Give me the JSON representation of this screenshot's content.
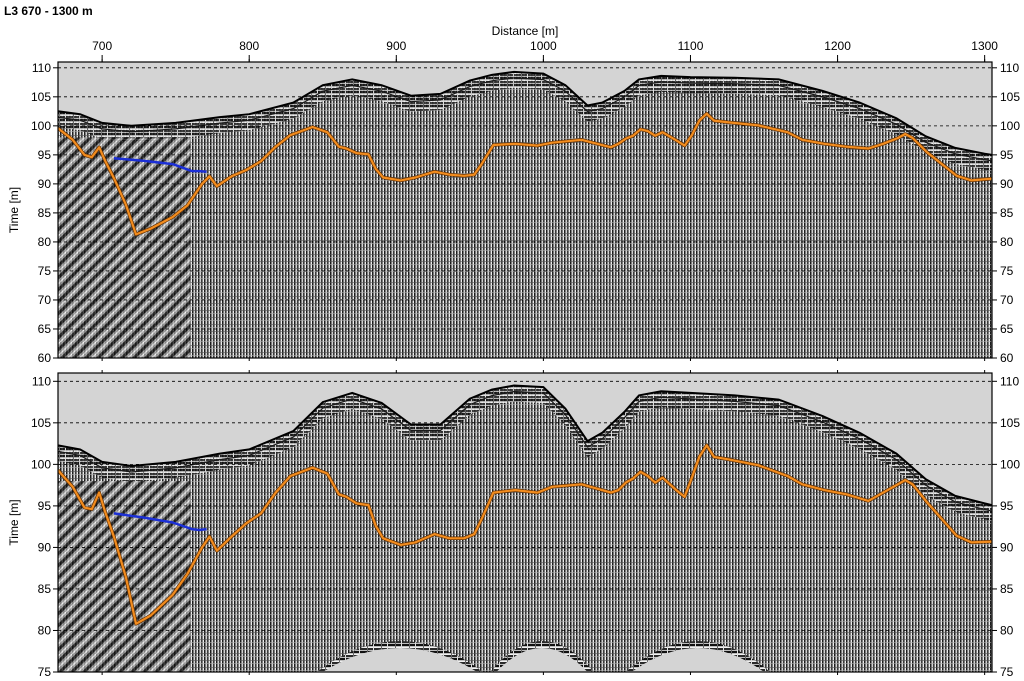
{
  "figure": {
    "title": "L3 670 - 1300 m",
    "xlabel": "Distance [m]",
    "x_ticks": [
      700,
      800,
      900,
      1000,
      1100,
      1200,
      1300
    ],
    "colors": {
      "background": "#d4d4d4",
      "horizon_orange": "#f28c1e",
      "horizon_blue": "#1b2fd6",
      "grid": "#000000"
    }
  },
  "chart_data": [
    {
      "type": "line",
      "panel": "top",
      "xlabel": "Distance [m]",
      "ylabel": "Time [m]",
      "xlim": [
        670,
        1305
      ],
      "ylim": [
        60,
        111
      ],
      "y_ticks": [
        60,
        65,
        70,
        75,
        80,
        85,
        90,
        95,
        100,
        105,
        110
      ],
      "grid": "dashed horizontal",
      "series": [
        {
          "role": "surface",
          "x": [
            670,
            685,
            700,
            720,
            750,
            780,
            800,
            830,
            850,
            870,
            890,
            910,
            930,
            950,
            965,
            980,
            1000,
            1015,
            1030,
            1040,
            1055,
            1065,
            1080,
            1100,
            1130,
            1160,
            1190,
            1215,
            1240,
            1260,
            1280,
            1300,
            1305
          ],
          "y": [
            102.5,
            102,
            100.5,
            100,
            100.5,
            101.5,
            102,
            104,
            107,
            108,
            107,
            105.2,
            105.5,
            107.8,
            108.8,
            109.3,
            109,
            107,
            103.5,
            104,
            106,
            108,
            108.6,
            108.4,
            108.3,
            108,
            106,
            104,
            101.3,
            98.2,
            96.2,
            95.2,
            95
          ]
        },
        {
          "role": "orange-horizon",
          "x": [
            670,
            680,
            688,
            693,
            698,
            702,
            708,
            716,
            723,
            733,
            748,
            758,
            768,
            773,
            778,
            788,
            798,
            808,
            818,
            828,
            843,
            853,
            861,
            866,
            873,
            881,
            886,
            891,
            903,
            913,
            926,
            936,
            946,
            953,
            958,
            966,
            981,
            996,
            1006,
            1026,
            1046,
            1051,
            1056,
            1061,
            1066,
            1071,
            1076,
            1081,
            1091,
            1096,
            1101,
            1106,
            1111,
            1116,
            1126,
            1146,
            1166,
            1176,
            1191,
            1206,
            1221,
            1231,
            1241,
            1246,
            1251,
            1261,
            1271,
            1281,
            1291,
            1305
          ],
          "y": [
            99.6,
            97.6,
            95,
            94.6,
            96.3,
            94,
            91,
            86.5,
            81.3,
            82.3,
            84.3,
            86.3,
            90,
            91.3,
            89.6,
            91.3,
            92.4,
            93.9,
            96.4,
            98.4,
            99.8,
            98.9,
            96.4,
            96.1,
            95.3,
            95.1,
            92.6,
            91.1,
            90.6,
            91.1,
            92.1,
            91.6,
            91.4,
            91.6,
            93.4,
            96.7,
            96.9,
            96.6,
            97.1,
            97.6,
            96.3,
            96.9,
            97.8,
            98.3,
            99.4,
            99.1,
            98.3,
            98.9,
            97.4,
            96.6,
            98.4,
            100.9,
            102.1,
            100.9,
            100.6,
            100.1,
            98.9,
            97.6,
            96.9,
            96.4,
            96.1,
            96.9,
            97.9,
            98.6,
            97.9,
            95.4,
            93.4,
            91.4,
            90.6,
            90.9
          ]
        },
        {
          "role": "blue-horizon",
          "x": [
            708,
            728,
            748,
            761,
            766,
            771
          ],
          "y": [
            94.4,
            94,
            93.4,
            92.2,
            92.2,
            92.1
          ]
        }
      ]
    },
    {
      "type": "line",
      "panel": "bottom",
      "xlabel": "Distance [m]",
      "ylabel": "Time [m]",
      "xlim": [
        670,
        1305
      ],
      "ylim": [
        75,
        111
      ],
      "y_ticks": [
        75,
        80,
        85,
        90,
        95,
        100,
        105,
        110
      ],
      "grid": "dashed horizontal",
      "series": [
        {
          "role": "surface",
          "x": [
            670,
            685,
            700,
            720,
            750,
            780,
            800,
            830,
            850,
            870,
            890,
            910,
            930,
            950,
            965,
            980,
            1000,
            1015,
            1030,
            1040,
            1055,
            1065,
            1080,
            1100,
            1130,
            1160,
            1190,
            1215,
            1240,
            1260,
            1280,
            1300,
            1305
          ],
          "y": [
            102.3,
            101.8,
            100.3,
            99.8,
            100.3,
            101.3,
            101.8,
            104,
            107.5,
            108.6,
            107.4,
            104.8,
            104.8,
            107.9,
            109,
            109.5,
            109.3,
            106.7,
            102.8,
            103.8,
            106.3,
            108.3,
            108.8,
            108.6,
            108.3,
            107.8,
            105.8,
            103.8,
            101.3,
            98.2,
            96.2,
            95.3,
            95.1
          ]
        },
        {
          "role": "orange-horizon",
          "x": [
            670,
            680,
            688,
            693,
            698,
            702,
            708,
            716,
            723,
            733,
            748,
            758,
            768,
            773,
            778,
            788,
            798,
            808,
            818,
            828,
            843,
            853,
            861,
            866,
            873,
            881,
            886,
            891,
            903,
            913,
            926,
            936,
            946,
            953,
            958,
            966,
            981,
            996,
            1006,
            1026,
            1046,
            1051,
            1056,
            1061,
            1066,
            1071,
            1076,
            1081,
            1091,
            1096,
            1101,
            1106,
            1111,
            1116,
            1126,
            1146,
            1166,
            1176,
            1191,
            1206,
            1221,
            1231,
            1241,
            1246,
            1251,
            1261,
            1271,
            1281,
            1291,
            1305
          ],
          "y": [
            99.3,
            97.3,
            94.8,
            94.6,
            96.6,
            94.3,
            91.3,
            86.5,
            80.8,
            81.8,
            84.3,
            86.8,
            90,
            91.3,
            89.6,
            91.3,
            92.9,
            94.1,
            96.6,
            98.6,
            99.6,
            98.9,
            96.4,
            96.1,
            95.3,
            95.1,
            92.6,
            91.1,
            90.3,
            90.6,
            91.6,
            91.1,
            91.1,
            91.6,
            93.4,
            96.6,
            96.9,
            96.6,
            97.3,
            97.6,
            96.6,
            96.9,
            97.8,
            98.3,
            99.1,
            98.6,
            97.8,
            98.4,
            96.8,
            96.1,
            98.4,
            100.9,
            102.3,
            100.9,
            100.6,
            99.9,
            98.6,
            97.6,
            96.9,
            96.4,
            95.6,
            96.6,
            97.6,
            98.1,
            97.6,
            95.4,
            93.4,
            91.4,
            90.6,
            90.7
          ]
        },
        {
          "role": "blue-horizon",
          "x": [
            708,
            728,
            748,
            761,
            766,
            771
          ],
          "y": [
            94.1,
            93.6,
            93,
            92.2,
            92.1,
            92.2
          ]
        }
      ]
    }
  ]
}
